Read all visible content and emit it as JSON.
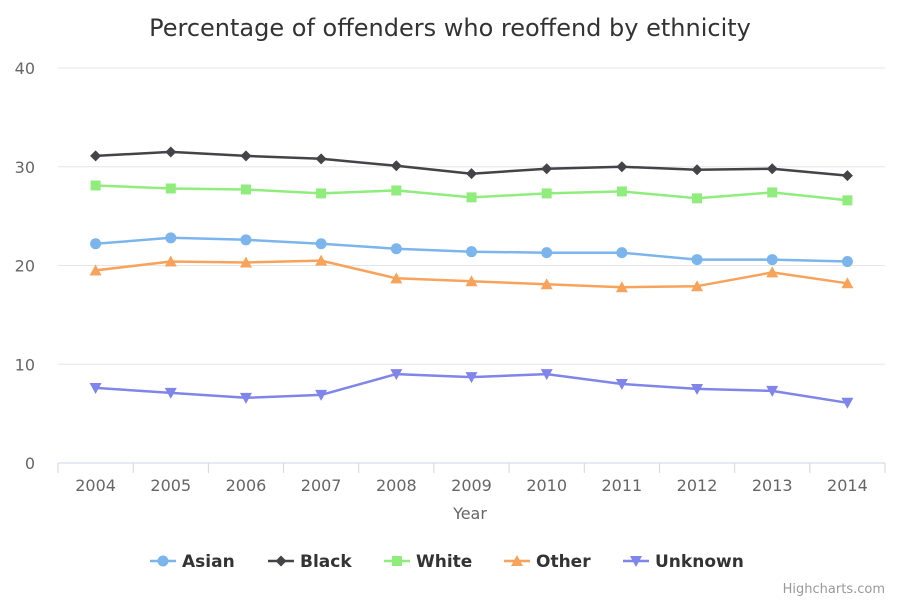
{
  "chart_data": {
    "type": "line",
    "title": "Percentage of offenders who reoffend by ethnicity",
    "xlabel": "Year",
    "ylabel": "",
    "categories": [
      "2004",
      "2005",
      "2006",
      "2007",
      "2008",
      "2009",
      "2010",
      "2011",
      "2012",
      "2013",
      "2014"
    ],
    "ylim": [
      0,
      40
    ],
    "yticks": [
      0,
      10,
      20,
      30,
      40
    ],
    "grid": true,
    "legend_position": "bottom",
    "series": [
      {
        "name": "Asian",
        "color": "#7cb5ec",
        "marker": "circle",
        "values": [
          22.2,
          22.8,
          22.6,
          22.2,
          21.7,
          21.4,
          21.3,
          21.3,
          20.6,
          20.6,
          20.4
        ]
      },
      {
        "name": "Black",
        "color": "#434348",
        "marker": "diamond",
        "values": [
          31.1,
          31.5,
          31.1,
          30.8,
          30.1,
          29.3,
          29.8,
          30.0,
          29.7,
          29.8,
          29.1
        ]
      },
      {
        "name": "White",
        "color": "#90ed7d",
        "marker": "square",
        "values": [
          28.1,
          27.8,
          27.7,
          27.3,
          27.6,
          26.9,
          27.3,
          27.5,
          26.8,
          27.4,
          26.6
        ]
      },
      {
        "name": "Other",
        "color": "#f7a35c",
        "marker": "triangle",
        "values": [
          19.5,
          20.4,
          20.3,
          20.5,
          18.7,
          18.4,
          18.1,
          17.8,
          17.9,
          19.3,
          18.2
        ]
      },
      {
        "name": "Unknown",
        "color": "#8085e9",
        "marker": "triangle-down",
        "values": [
          7.6,
          7.1,
          6.6,
          6.9,
          9.0,
          8.7,
          9.0,
          8.0,
          7.5,
          7.3,
          6.1
        ]
      }
    ]
  },
  "credits": "Highcharts.com"
}
